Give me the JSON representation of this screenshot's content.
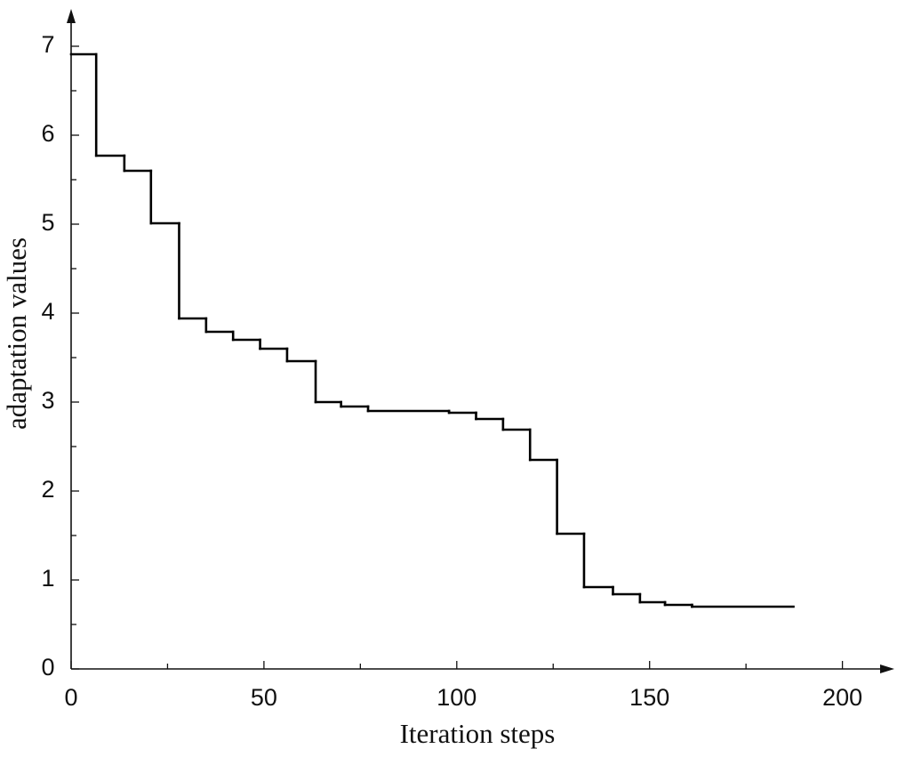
{
  "chart_data": {
    "type": "line",
    "step": "post",
    "xlabel": "Iteration steps",
    "ylabel": "adaptation values",
    "x": [
      0,
      6.5,
      13.8,
      20.7,
      28,
      35,
      42,
      49,
      56,
      63.4,
      70,
      77,
      98,
      105,
      112,
      119,
      126,
      133,
      140.5,
      147.5,
      154,
      161,
      187.3
    ],
    "values": [
      6.91,
      5.77,
      5.6,
      5.01,
      3.94,
      3.79,
      3.7,
      3.6,
      3.46,
      3.0,
      2.95,
      2.9,
      2.88,
      2.81,
      2.69,
      2.35,
      1.52,
      0.92,
      0.84,
      0.75,
      0.72,
      0.7,
      0.7
    ],
    "color": "#000000",
    "xlim": [
      0,
      213
    ],
    "ylim": [
      0,
      7.4
    ],
    "xticks": [
      0,
      50,
      100,
      150,
      200
    ],
    "xminorticks": [
      25,
      75,
      125,
      175
    ],
    "yticks": [
      0,
      1,
      2,
      3,
      4,
      5,
      6,
      7
    ],
    "yminorticks": [
      0.5,
      1.5,
      2.5,
      3.5,
      4.5,
      5.5,
      6.5
    ],
    "grid": false
  }
}
